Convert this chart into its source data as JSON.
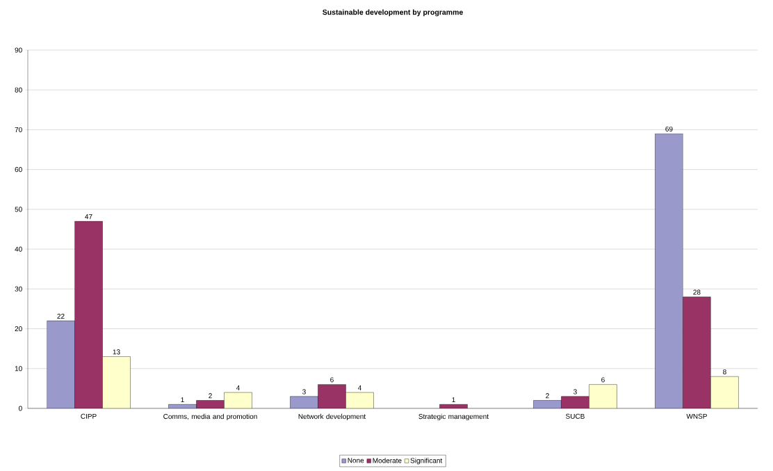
{
  "chart_data": {
    "type": "bar",
    "title": "Sustainable development by programme",
    "categories": [
      "CIPP",
      "Comms, media and promotion",
      "Network development",
      "Strategic management",
      "SUCB",
      "WNSP"
    ],
    "series": [
      {
        "name": "None",
        "color": "#9999cc",
        "values": [
          22,
          1,
          3,
          null,
          2,
          69
        ]
      },
      {
        "name": "Moderate",
        "color": "#993366",
        "values": [
          47,
          2,
          6,
          1,
          3,
          28
        ]
      },
      {
        "name": "Significant",
        "color": "#ffffcc",
        "values": [
          13,
          4,
          4,
          null,
          6,
          8
        ]
      }
    ],
    "ylim": [
      0,
      90
    ],
    "yticks": [
      0,
      10,
      20,
      30,
      40,
      50,
      60,
      70,
      80,
      90
    ],
    "grid": "y",
    "legend": "bottom",
    "data_labels": true
  }
}
